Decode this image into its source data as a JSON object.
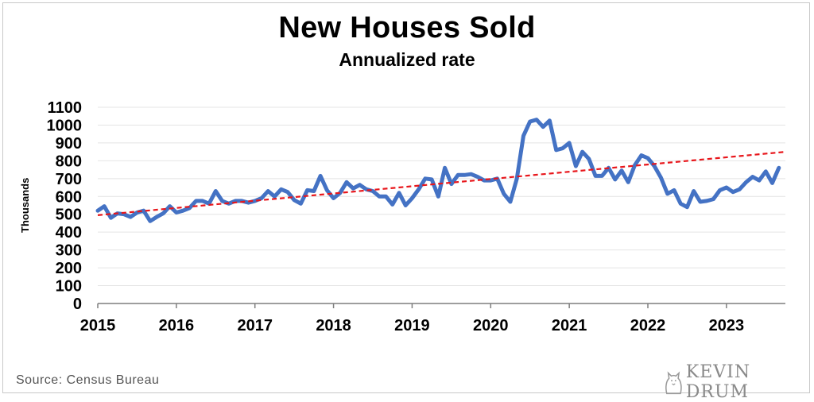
{
  "source": "Source: Census Bureau",
  "logo": {
    "text": "KEVIN DRUM",
    "icon": "cat-icon"
  },
  "colors": {
    "line": "#4472c4",
    "trend": "#e8161b",
    "grid": "#e4e4e4"
  },
  "chart_data": {
    "type": "line",
    "title": "New Houses Sold",
    "subtitle": "Annualized rate",
    "ylabel": "Thousands",
    "xlabel": "",
    "ylim": [
      0,
      1100
    ],
    "yticks": [
      0,
      100,
      200,
      300,
      400,
      500,
      600,
      700,
      800,
      900,
      1000,
      1100
    ],
    "xlim": [
      2015,
      2023.75
    ],
    "xticks": [
      "2015",
      "2016",
      "2017",
      "2018",
      "2019",
      "2020",
      "2021",
      "2022",
      "2023"
    ],
    "grid": true,
    "series": [
      {
        "values": [
          520,
          545,
          480,
          505,
          500,
          485,
          510,
          520,
          462,
          485,
          505,
          545,
          510,
          520,
          535,
          575,
          575,
          560,
          630,
          575,
          560,
          575,
          575,
          565,
          575,
          590,
          630,
          600,
          640,
          625,
          580,
          560,
          635,
          630,
          715,
          635,
          590,
          620,
          680,
          645,
          665,
          640,
          630,
          600,
          600,
          555,
          620,
          550,
          590,
          640,
          700,
          695,
          600,
          760,
          670,
          720,
          720,
          725,
          710,
          690,
          690,
          700,
          615,
          570,
          700,
          940,
          1020,
          1030,
          990,
          1025,
          860,
          870,
          900,
          770,
          850,
          810,
          715,
          715,
          760,
          695,
          745,
          680,
          775,
          830,
          815,
          770,
          705,
          615,
          635,
          560,
          540,
          630,
          570,
          575,
          585,
          635,
          650,
          625,
          640,
          680,
          710,
          690,
          740,
          675,
          760
        ]
      },
      {
        "x": [
          2015,
          2023.75
        ],
        "values": [
          495,
          850
        ]
      }
    ]
  }
}
